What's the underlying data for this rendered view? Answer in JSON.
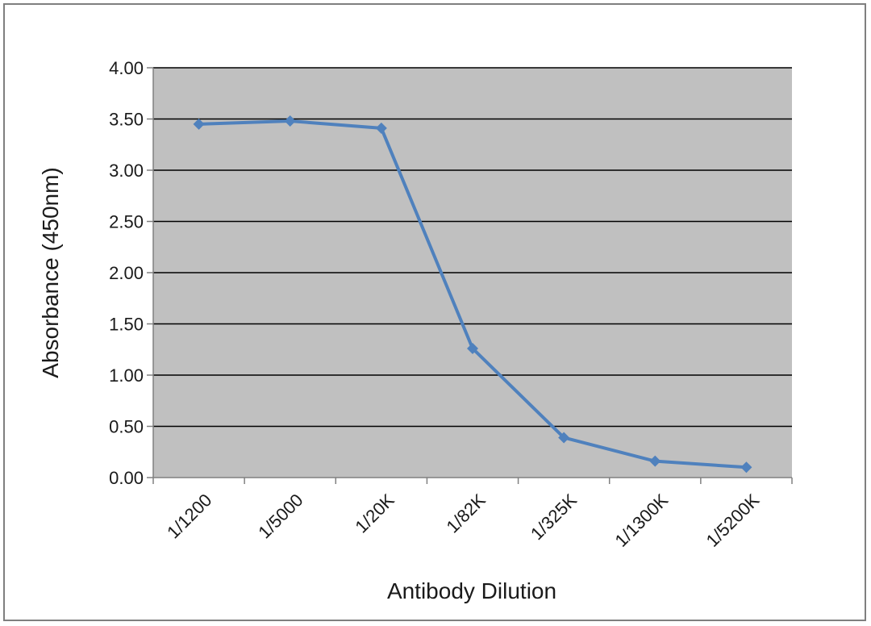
{
  "chart_data": {
    "type": "line",
    "title": "",
    "xlabel": "Antibody Dilution",
    "ylabel": "Absorbance (450nm)",
    "categories": [
      "1/1200",
      "1/5000",
      "1/20K",
      "1/82K",
      "1/325K",
      "1/1300K",
      "1/5200K"
    ],
    "series": [
      {
        "values": [
          3.45,
          3.48,
          3.41,
          1.26,
          0.39,
          0.16,
          0.1
        ]
      }
    ],
    "y_ticks": [
      "0.00",
      "0.50",
      "1.00",
      "1.50",
      "2.00",
      "2.50",
      "3.00",
      "3.50",
      "4.00"
    ],
    "ylim": [
      0,
      4
    ],
    "grid": true,
    "legend": "none",
    "colors": {
      "plot_area": "#c0c0c0",
      "line": "#4f81bd",
      "marker": "#4f81bd",
      "gridline": "#000000",
      "axis": "#808080",
      "frame": "#7f7f7f"
    }
  }
}
